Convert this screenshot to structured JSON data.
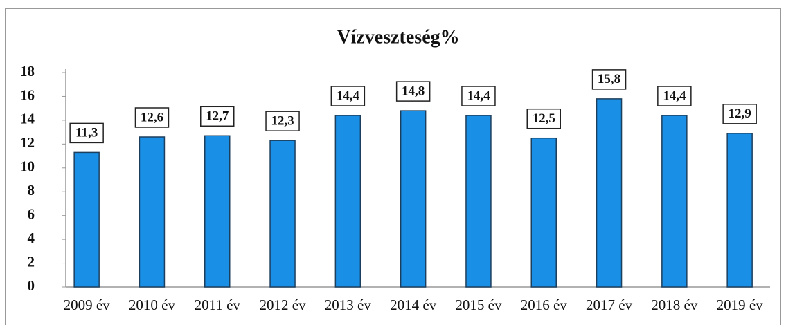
{
  "chart_data": {
    "type": "bar",
    "title": "Vízveszteség%",
    "categories": [
      "2009 év",
      "2010 év",
      "2011 év",
      "2012 év",
      "2013 év",
      "2014 év",
      "2015 év",
      "2016 év",
      "2017 év",
      "2018 év",
      "2019 év"
    ],
    "values": [
      11.3,
      12.6,
      12.7,
      12.3,
      14.4,
      14.8,
      14.4,
      12.5,
      15.8,
      14.4,
      12.9
    ],
    "value_labels": [
      "11,3",
      "12,6",
      "12,7",
      "12,3",
      "14,4",
      "14,8",
      "14,4",
      "12,5",
      "15,8",
      "14,4",
      "12,9"
    ],
    "color": "#1a8fe6",
    "ylim": [
      0,
      18
    ],
    "yticks": [
      0,
      2,
      4,
      6,
      8,
      10,
      12,
      14,
      16,
      18
    ],
    "grid": false
  }
}
